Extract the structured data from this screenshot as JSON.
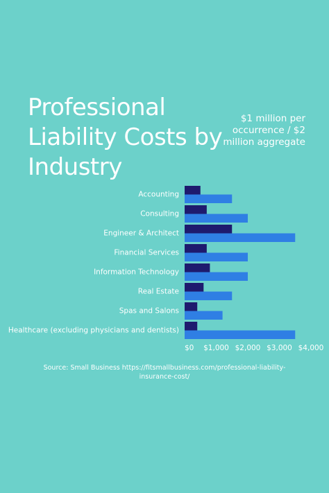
{
  "header": {
    "title": "Professional Liability Costs by Industry",
    "subtitle": "$1 million per occurrence / $2 million aggregate"
  },
  "source": "Source: Small Business https://fitsmallbusiness.com/professional-liability-insurance-cost/",
  "colors": {
    "background": "#6cd1ca",
    "series_dark": "#1e1a6e",
    "series_light": "#2f7fe4"
  },
  "chart_data": {
    "type": "bar",
    "orientation": "horizontal",
    "categories": [
      "Accounting",
      "Consulting",
      "Engineer & Architect",
      "Financial Services",
      "Information Technology",
      "Real Estate",
      "Spas and Salons",
      "Healthcare (excluding physicians and dentists)"
    ],
    "series": [
      {
        "values": [
          500,
          700,
          1500,
          700,
          800,
          600,
          400,
          400
        ]
      },
      {
        "values": [
          1500,
          2000,
          3500,
          2000,
          2000,
          1500,
          1200,
          3500
        ]
      }
    ],
    "xlim": [
      0,
      4000
    ],
    "xticks": [
      0,
      1000,
      2000,
      3000,
      4000
    ],
    "xtick_labels": [
      "$0",
      "$1,000",
      "$2,000",
      "$3,000",
      "$4,000"
    ],
    "grid": false,
    "legend": "none"
  }
}
